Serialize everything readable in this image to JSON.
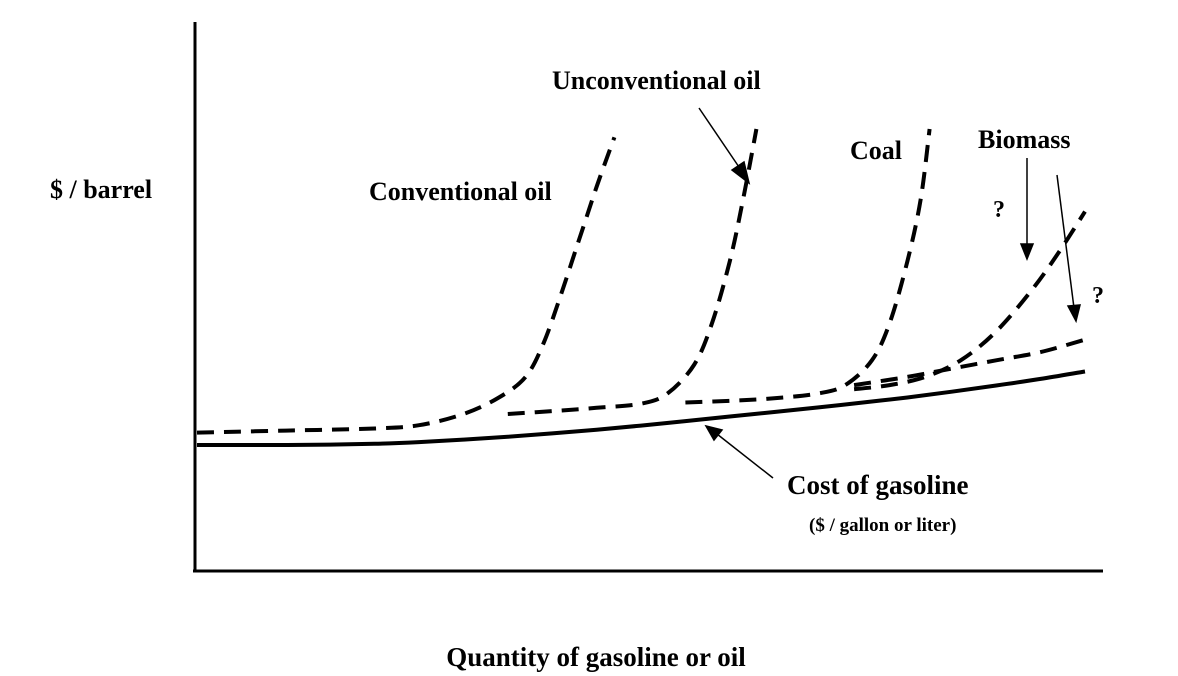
{
  "chart_data": {
    "type": "line",
    "ylabel": "$ / barrel",
    "xlabel": "Quantity of gasoline or oil",
    "grid": false,
    "axis_ticks": false,
    "series": [
      {
        "name": "Cost of gasoline",
        "sublabel": "($ / gallon or liter)",
        "style": "solid",
        "color": "#000000",
        "x": [
          0,
          5,
          10,
          15,
          20,
          25,
          30,
          35,
          40,
          45,
          50,
          55,
          60,
          65,
          70,
          75,
          80,
          85,
          90,
          95,
          100
        ],
        "y": [
          30.5,
          30.5,
          30.5,
          30.6,
          30.8,
          31.2,
          31.8,
          32.5,
          33.3,
          34.2,
          35.2,
          36.3,
          37.4,
          38.5,
          39.6,
          40.8,
          42,
          43.4,
          44.9,
          46.5,
          48.3
        ]
      },
      {
        "name": "Conventional oil",
        "style": "dashed",
        "color": "#000000",
        "x": [
          0,
          10,
          20,
          25,
          30,
          34,
          37,
          39,
          41,
          43,
          45,
          47
        ],
        "y": [
          33.5,
          34,
          34.5,
          35.3,
          38,
          42,
          47,
          55,
          67,
          80,
          93,
          105
        ]
      },
      {
        "name": "Unconventional oil",
        "style": "dashed",
        "color": "#000000",
        "x": [
          35,
          40,
          45,
          50,
          53,
          56,
          58,
          60,
          61.5,
          63
        ],
        "y": [
          38,
          38.7,
          39.5,
          40.5,
          43,
          50,
          60,
          75,
          90,
          107
        ]
      },
      {
        "name": "Coal",
        "style": "dashed",
        "color": "#000000",
        "x": [
          55,
          60,
          65,
          70,
          73,
          76,
          78,
          80,
          81.5,
          82.5
        ],
        "y": [
          40.8,
          41.2,
          41.8,
          43,
          45,
          51,
          60,
          75,
          90,
          107
        ]
      },
      {
        "name": "Biomass",
        "style": "dashed",
        "color": "#000000",
        "x": [
          74,
          78,
          82,
          86,
          90,
          94,
          97,
          100
        ],
        "y": [
          44,
          45,
          47,
          51,
          58,
          68,
          77,
          87
        ]
      },
      {
        "name": "Biomass",
        "style": "dashed",
        "color": "#000000",
        "x": [
          74,
          80,
          85,
          90,
          95,
          100
        ],
        "y": [
          45,
          47,
          49,
          51,
          53,
          56
        ]
      }
    ],
    "annotations": [
      {
        "text": "Conventional oil",
        "arrow": false
      },
      {
        "text": "Unconventional oil",
        "arrow": true
      },
      {
        "text": "Coal",
        "arrow": false
      },
      {
        "text": "Biomass",
        "arrow": true
      },
      {
        "text": "?",
        "arrow": false
      },
      {
        "text": "?",
        "arrow": false
      },
      {
        "text": "Cost of gasoline",
        "arrow": true
      },
      {
        "text": "($ / gallon or liter)",
        "arrow": false
      }
    ],
    "xlim": [
      0,
      100
    ],
    "ylim": [
      0,
      130
    ]
  }
}
